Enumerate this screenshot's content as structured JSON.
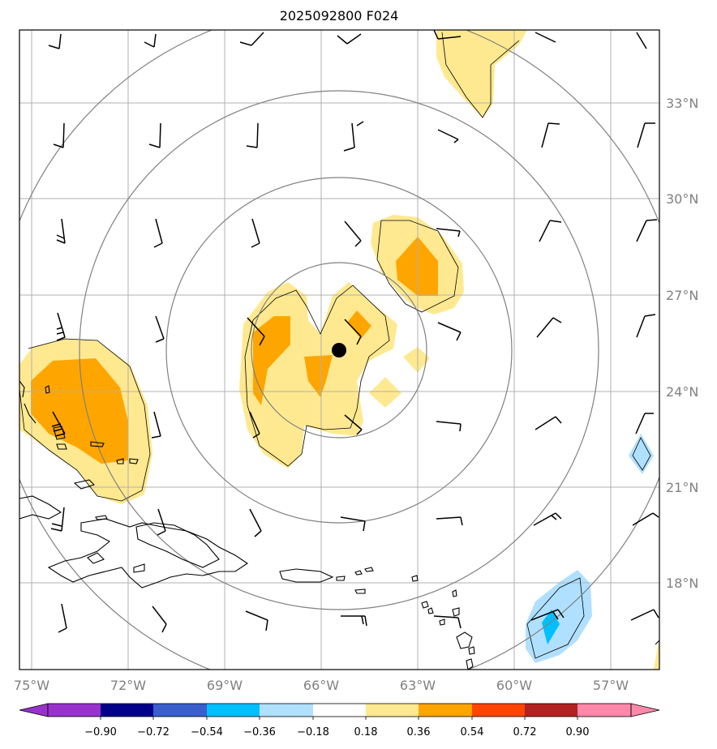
{
  "title": "2025092800 F024",
  "colors": {
    "land_border": "#000000",
    "grid": "#b0b0b0",
    "range_rings": "#808080",
    "center_marker": "#000000"
  },
  "map": {
    "lon_ticks": [
      "75°W",
      "72°W",
      "69°W",
      "66°W",
      "63°W",
      "60°W",
      "57°W"
    ],
    "lat_ticks": [
      "33°N",
      "30°N",
      "27°N",
      "24°N",
      "21°N",
      "18°N"
    ],
    "lon_range": [
      -75.4,
      -55.4
    ],
    "lat_range": [
      15.0,
      35.2
    ],
    "center": {
      "lon": -65.4,
      "lat": 25.3
    }
  },
  "colorbar": {
    "labels": [
      "−0.90",
      "−0.72",
      "−0.54",
      "−0.36",
      "−0.18",
      "0.18",
      "0.36",
      "0.54",
      "0.72",
      "0.90"
    ],
    "colors": [
      "#9932cc",
      "#00008b",
      "#3a5fcd",
      "#00bfff",
      "#b0e0ff",
      "#ffffff",
      "#ffe990",
      "#ffa500",
      "#ff4500",
      "#b22222",
      "#ff88aa"
    ]
  }
}
